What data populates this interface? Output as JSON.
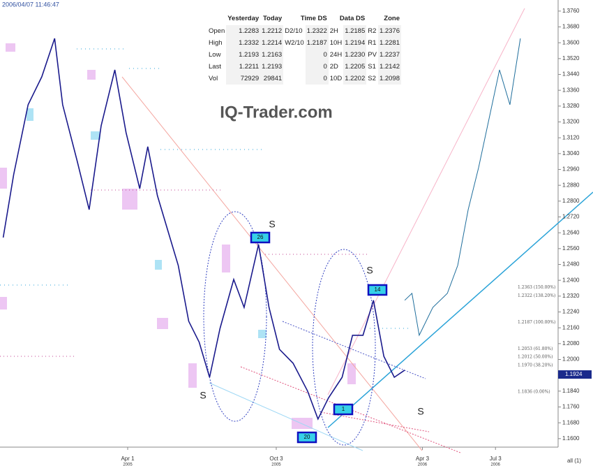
{
  "chart_data": {
    "type": "line",
    "timestamp": "2006/04/07 11:46:47",
    "watermark": "IQ-Trader.com",
    "ylim": [
      1.1557,
      1.3816
    ],
    "yticks": [
      {
        "value": 1.376,
        "label": "1.3760"
      },
      {
        "value": 1.368,
        "label": "1.3680"
      },
      {
        "value": 1.36,
        "label": "1.3600"
      },
      {
        "value": 1.352,
        "label": "1.3520"
      },
      {
        "value": 1.344,
        "label": "1.3440"
      },
      {
        "value": 1.336,
        "label": "1.3360"
      },
      {
        "value": 1.328,
        "label": "1.3280"
      },
      {
        "value": 1.32,
        "label": "1.3200"
      },
      {
        "value": 1.312,
        "label": "1.3120"
      },
      {
        "value": 1.304,
        "label": "1.3040"
      },
      {
        "value": 1.296,
        "label": "1.2960"
      },
      {
        "value": 1.288,
        "label": "1.2880"
      },
      {
        "value": 1.28,
        "label": "1.2800"
      },
      {
        "value": 1.272,
        "label": "1.2720"
      },
      {
        "value": 1.264,
        "label": "1.2640"
      },
      {
        "value": 1.256,
        "label": "1.2560"
      },
      {
        "value": 1.248,
        "label": "1.2480"
      },
      {
        "value": 1.24,
        "label": "1.2400"
      },
      {
        "value": 1.232,
        "label": "1.2320"
      },
      {
        "value": 1.224,
        "label": "1.2240"
      },
      {
        "value": 1.216,
        "label": "1.2160"
      },
      {
        "value": 1.208,
        "label": "1.2080"
      },
      {
        "value": 1.2,
        "label": "1.2000"
      },
      {
        "value": 1.192,
        "label": "1.1920"
      },
      {
        "value": 1.184,
        "label": "1.1840"
      },
      {
        "value": 1.176,
        "label": "1.1760"
      },
      {
        "value": 1.168,
        "label": "1.1680"
      },
      {
        "value": 1.16,
        "label": "1.1600"
      }
    ],
    "xlim": [
      "2004-10-24",
      "2006-09-19"
    ],
    "xticks": [
      {
        "value": "2005-04-01",
        "label": "Apr 1",
        "year": "2005"
      },
      {
        "value": "2005-10-03",
        "label": "Oct 3",
        "year": "2005"
      },
      {
        "value": "2006-04-03",
        "label": "Apr 3",
        "year": "2006"
      },
      {
        "value": "2006-07-03",
        "label": "Jul 3",
        "year": "2006"
      }
    ],
    "series": [
      {
        "color": "#1a1a8c",
        "x": [
          "2004-10-28",
          "2004-11-10",
          "2004-11-28",
          "2004-12-15",
          "2004-12-31",
          "2005-01-10",
          "2005-01-28",
          "2005-02-12",
          "2005-02-27",
          "2005-03-16",
          "2005-03-30",
          "2005-04-16",
          "2005-04-26",
          "2005-05-08",
          "2005-05-21",
          "2005-06-03",
          "2005-06-16",
          "2005-06-29",
          "2005-07-12",
          "2005-07-25",
          "2005-08-11",
          "2005-08-24",
          "2005-09-11",
          "2005-09-24",
          "2005-10-07",
          "2005-10-24",
          "2005-11-11",
          "2005-11-24",
          "2005-12-07",
          "2005-12-24",
          "2006-01-06",
          "2006-01-19",
          "2006-02-01",
          "2006-02-14",
          "2006-02-27",
          "2006-03-12"
        ],
        "values": [
          1.2616,
          1.2934,
          1.3287,
          1.3428,
          1.3622,
          1.3287,
          1.3004,
          1.2757,
          1.3181,
          1.3463,
          1.3146,
          1.2863,
          1.3075,
          1.2828,
          1.2651,
          1.2475,
          1.2193,
          1.2087,
          1.191,
          1.2157,
          1.2404,
          1.2263,
          1.2581,
          1.2263,
          1.2051,
          1.1981,
          1.184,
          1.1699,
          1.1805,
          1.191,
          1.2122,
          1.2122,
          1.2299,
          1.2016,
          1.191,
          1.1946
        ]
      },
      {
        "color": "#1f6e9c",
        "x": [
          "2006-03-12",
          "2006-03-21",
          "2006-03-30",
          "2006-04-16",
          "2006-05-04",
          "2006-05-17",
          "2006-05-30",
          "2006-06-12",
          "2006-06-25",
          "2006-07-08",
          "2006-07-21",
          "2006-08-03"
        ],
        "values": [
          1.2299,
          1.2334,
          1.2122,
          1.2263,
          1.2334,
          1.2475,
          1.2757,
          1.2969,
          1.3216,
          1.3463,
          1.3287,
          1.3622
        ]
      }
    ],
    "last_price": {
      "value": 1.1924,
      "label": "1.1924"
    },
    "fib_levels": [
      {
        "value": 1.2363,
        "label": "1.2363 (150.00%)"
      },
      {
        "value": 1.2322,
        "label": "1.2322 (138.20%)"
      },
      {
        "value": 1.2187,
        "label": "1.2187 (100.00%)"
      },
      {
        "value": 1.2053,
        "label": "1.2053 (61.80%)"
      },
      {
        "value": 1.2012,
        "label": "1.2012 (50.00%)"
      },
      {
        "value": 1.197,
        "label": "1.1970 (38.20%)"
      },
      {
        "value": 1.1836,
        "label": "1.1836 (0.00%)"
      }
    ],
    "markers": [
      "S",
      "S",
      "S",
      "S"
    ],
    "wave_counts": [
      "26",
      "14",
      "1",
      "20"
    ],
    "footer": "all (1)",
    "table": {
      "header": [
        "Yesterday",
        "Today",
        "Time DS",
        "Data DS",
        "Zone"
      ],
      "rows": [
        {
          "label": "Open",
          "yesterday": "1.2283",
          "today": "1.2212",
          "time_tag": "D2/10",
          "time": "1.2322",
          "data_tag": "2H",
          "data": "1.2185",
          "zone_tag": "R2",
          "zone": "1.2376"
        },
        {
          "label": "High",
          "yesterday": "1.2332",
          "today": "1.2214",
          "time_tag": "W2/10",
          "time": "1.2187",
          "data_tag": "10H",
          "data": "1.2194",
          "zone_tag": "R1",
          "zone": "1.2281"
        },
        {
          "label": "Low",
          "yesterday": "1.2193",
          "today": "1.2163",
          "time": "0",
          "data_tag": "24H",
          "data": "1.2230",
          "zone_tag": "PV",
          "zone": "1.2237"
        },
        {
          "label": "Last",
          "yesterday": "1.2211",
          "today": "1.2193",
          "time": "0",
          "data_tag": "2D",
          "data": "1.2205",
          "zone_tag": "S1",
          "zone": "1.2142"
        },
        {
          "label": "Vol",
          "yesterday": "72929",
          "today": "29841",
          "time": "0",
          "data_tag": "10D",
          "data": "1.2202",
          "zone_tag": "S2",
          "zone": "1.2098"
        }
      ]
    }
  }
}
